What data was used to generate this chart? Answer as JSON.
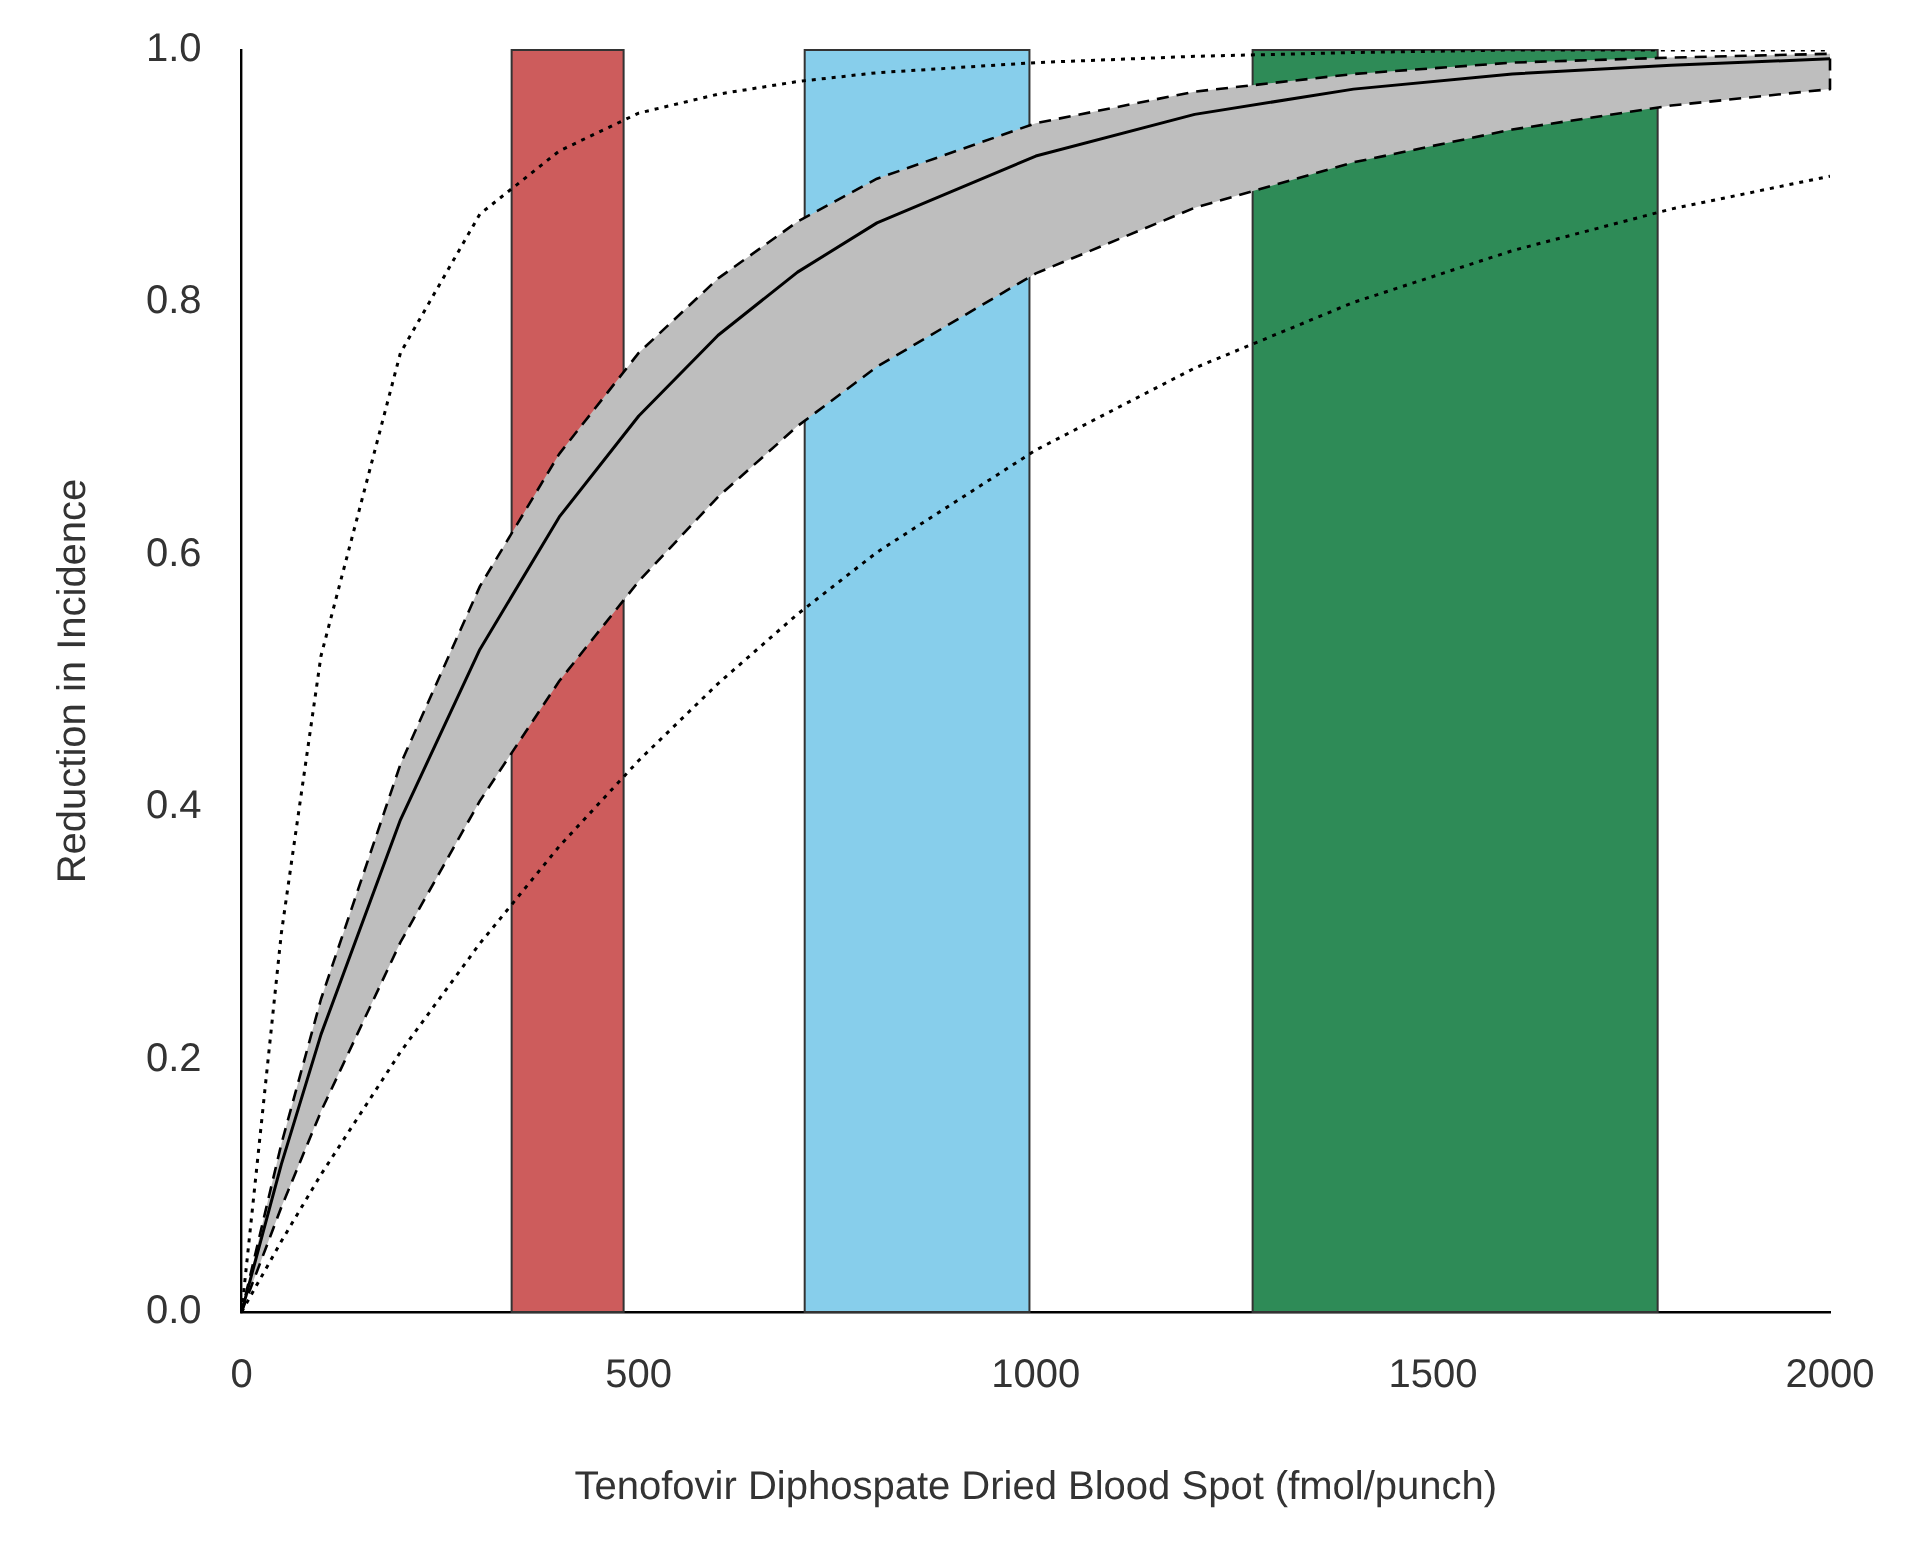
{
  "chart_data": {
    "type": "line",
    "xlabel": "Tenofovir Diphospate Dried Blood Spot (fmol/punch)",
    "ylabel": "Reduction in Incidence",
    "x": [
      0,
      50,
      100,
      200,
      300,
      400,
      500,
      600,
      700,
      800,
      1000,
      1200,
      1400,
      1600,
      1800,
      2000
    ],
    "series": [
      {
        "color": "#000000",
        "line_style": "solid",
        "values": [
          0,
          0.117,
          0.22,
          0.39,
          0.525,
          0.63,
          0.71,
          0.774,
          0.824,
          0.863,
          0.916,
          0.949,
          0.969,
          0.981,
          0.988,
          0.993
        ],
        "lower": [
          0,
          0.083,
          0.159,
          0.293,
          0.405,
          0.5,
          0.579,
          0.646,
          0.702,
          0.749,
          0.823,
          0.875,
          0.911,
          0.937,
          0.956,
          0.969
        ],
        "upper": [
          0,
          0.133,
          0.248,
          0.434,
          0.575,
          0.68,
          0.76,
          0.819,
          0.864,
          0.898,
          0.942,
          0.967,
          0.981,
          0.99,
          0.994,
          0.997
        ]
      },
      {
        "color": "#000000",
        "line_style": "dotted",
        "values": [
          0,
          0.3,
          0.52,
          0.76,
          0.87,
          0.92,
          0.95,
          0.965,
          0.975,
          0.982,
          0.99,
          0.995,
          0.998,
          1,
          1,
          1
        ]
      },
      {
        "color": "#000000",
        "line_style": "dotted",
        "values": [
          0,
          0.056,
          0.109,
          0.206,
          0.292,
          0.369,
          0.437,
          0.498,
          0.553,
          0.602,
          0.683,
          0.748,
          0.8,
          0.841,
          0.874,
          0.9
        ]
      }
    ],
    "bands": [
      {
        "axis": "x",
        "from": 340,
        "to": 481,
        "color": "#cd5c5c"
      },
      {
        "axis": "x",
        "from": 709,
        "to": 992,
        "color": "#87ceeb"
      },
      {
        "axis": "x",
        "from": 1273,
        "to": 1783,
        "color": "#2e8b57"
      }
    ],
    "xlim": [
      0,
      2000
    ],
    "xticks": [
      0,
      500,
      1000,
      1500,
      2000
    ],
    "ylim": [
      0,
      1
    ],
    "yticks": [
      {
        "value": 0,
        "label": "0.0"
      },
      0.2,
      0.4,
      0.6,
      0.8,
      {
        "value": 1,
        "label": "1.0"
      }
    ],
    "grid": false,
    "legend": false,
    "marker": "none"
  }
}
